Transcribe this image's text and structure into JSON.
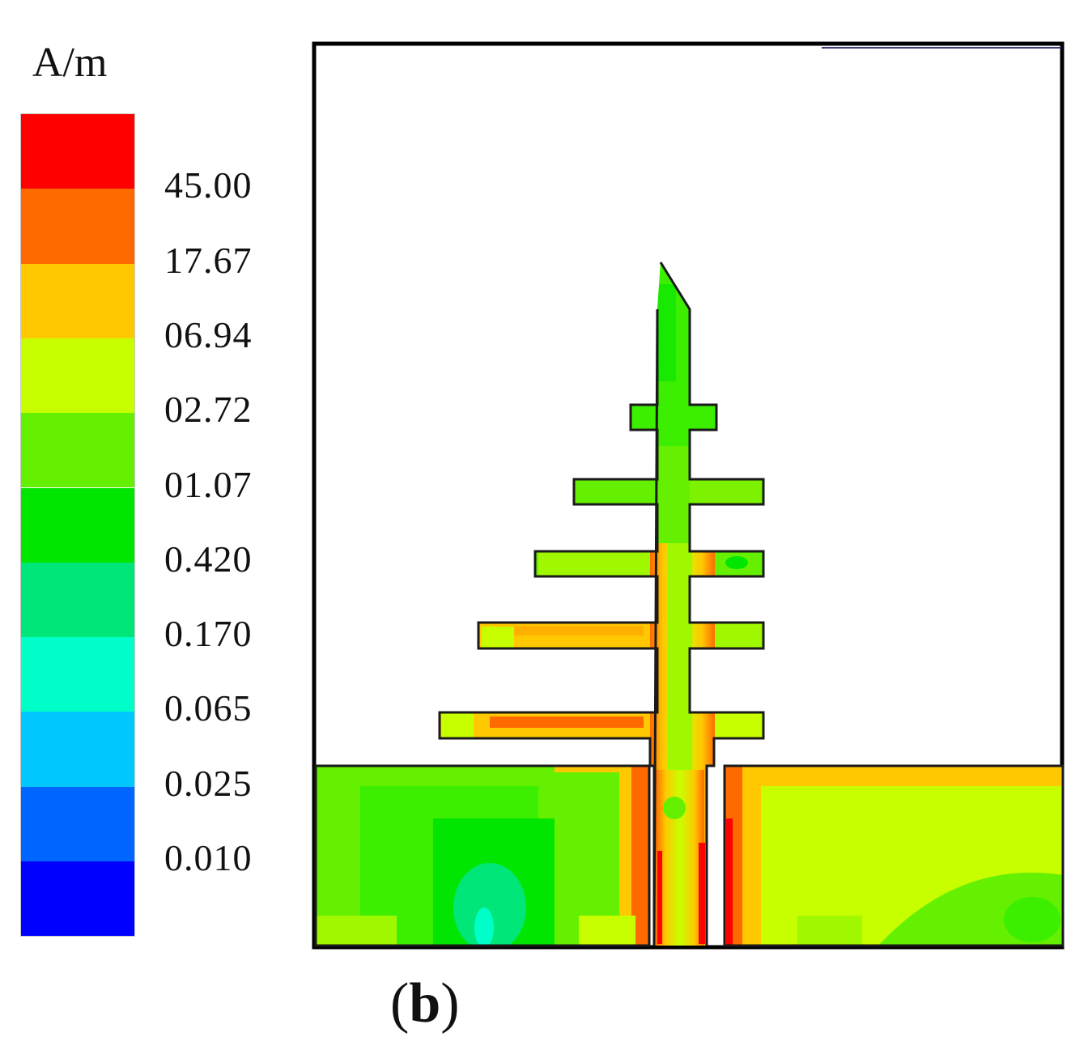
{
  "unit": "A/m",
  "legend": {
    "colors": [
      "#ff0000",
      "#ff6a00",
      "#ffc800",
      "#c8ff00",
      "#64f000",
      "#00e600",
      "#00e678",
      "#00ffc8",
      "#00c8ff",
      "#0064ff",
      "#0000ff"
    ],
    "ticks": [
      "45.00",
      "17.67",
      "06.94",
      "02.72",
      "01.07",
      "0.420",
      "0.170",
      "0.065",
      "0.025",
      "0.010"
    ]
  },
  "caption": {
    "open": "(",
    "letter": "b",
    "close": ")"
  }
}
